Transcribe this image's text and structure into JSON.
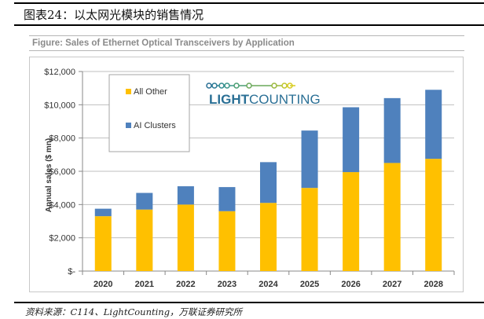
{
  "page": {
    "title": "图表24：以太网光模块的销售情况",
    "figure_caption": "Figure: Sales of Ethernet Optical Transceivers by Application",
    "source_note": "资料来源：C114、LightCounting，万联证券研究所"
  },
  "logo": {
    "text_bold": "LIGHT",
    "text_regular": "COUNTING"
  },
  "colors": {
    "all_other": "#ffc000",
    "ai_clusters": "#4f81bd",
    "gridline": "#bfbfbf",
    "logo_text": "#2a6f95"
  },
  "chart_data": {
    "type": "bar",
    "stacked": true,
    "title": "Sales of Ethernet Optical Transceivers by Application",
    "xlabel": "",
    "ylabel": "Annual sales ($ mn)",
    "categories": [
      "2020",
      "2021",
      "2022",
      "2023",
      "2024",
      "2025",
      "2026",
      "2027",
      "2028"
    ],
    "series": [
      {
        "name": "All Other",
        "color": "#ffc000",
        "values": [
          3300,
          3700,
          4000,
          3600,
          4100,
          5000,
          5950,
          6500,
          6750
        ]
      },
      {
        "name": "AI Clusters",
        "color": "#4f81bd",
        "values": [
          450,
          1000,
          1100,
          1450,
          2450,
          3450,
          3900,
          3900,
          4150
        ]
      }
    ],
    "ylim": [
      0,
      12000
    ],
    "yticks": [
      0,
      2000,
      4000,
      6000,
      8000,
      10000,
      12000
    ],
    "ytick_labels": [
      "$-",
      "$2,000",
      "$4,000",
      "$6,000",
      "$8,000",
      "$10,000",
      "$12,000"
    ],
    "grid": true,
    "legend": {
      "placement": "top-left",
      "entries": [
        "All Other",
        "AI Clusters"
      ]
    }
  }
}
